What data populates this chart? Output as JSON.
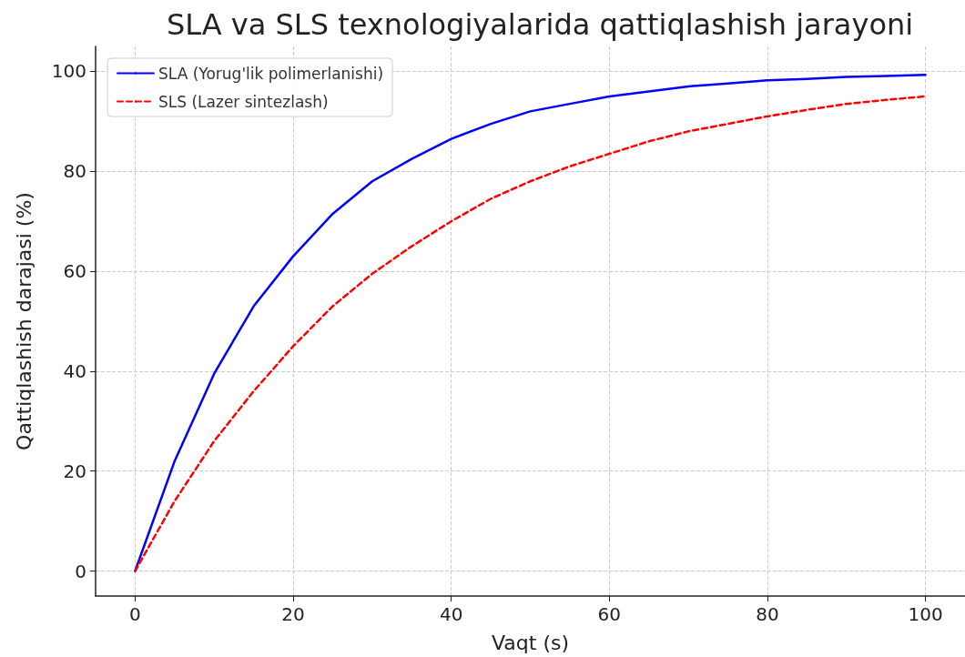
{
  "chart_data": {
    "type": "line",
    "title": "SLA va SLS texnologiyalarida qattiqlashish jarayoni",
    "xlabel": "Vaqt (s)",
    "ylabel": "Qattiqlashish darajasi (%)",
    "x": [
      0,
      5,
      10,
      15,
      20,
      25,
      30,
      35,
      40,
      45,
      50,
      55,
      60,
      65,
      70,
      75,
      80,
      85,
      90,
      95,
      100
    ],
    "series": [
      {
        "name": "SLA (Yorug'lik polimerlanishi)",
        "color": "#0000ff",
        "line_style": "solid",
        "values": [
          0,
          22,
          39.5,
          53,
          63,
          71.5,
          78,
          82.5,
          86.5,
          89.5,
          92,
          93.5,
          95,
          96,
          97,
          97.6,
          98.2,
          98.5,
          98.9,
          99.1,
          99.3
        ]
      },
      {
        "name": "SLS (Lazer sintezlash)",
        "color": "#ff0000",
        "line_style": "dashed",
        "values": [
          0,
          14,
          26,
          36,
          45,
          53,
          59.5,
          65,
          70,
          74.5,
          78,
          81,
          83.5,
          86,
          88,
          89.5,
          91,
          92.3,
          93.5,
          94.3,
          95
        ]
      }
    ],
    "xlim": [
      -5,
      105
    ],
    "ylim": [
      -5,
      105
    ],
    "xticks": [
      0,
      20,
      40,
      60,
      80,
      100
    ],
    "yticks": [
      0,
      20,
      40,
      60,
      80,
      100
    ],
    "grid": true,
    "legend": "top left",
    "marker": "none"
  }
}
